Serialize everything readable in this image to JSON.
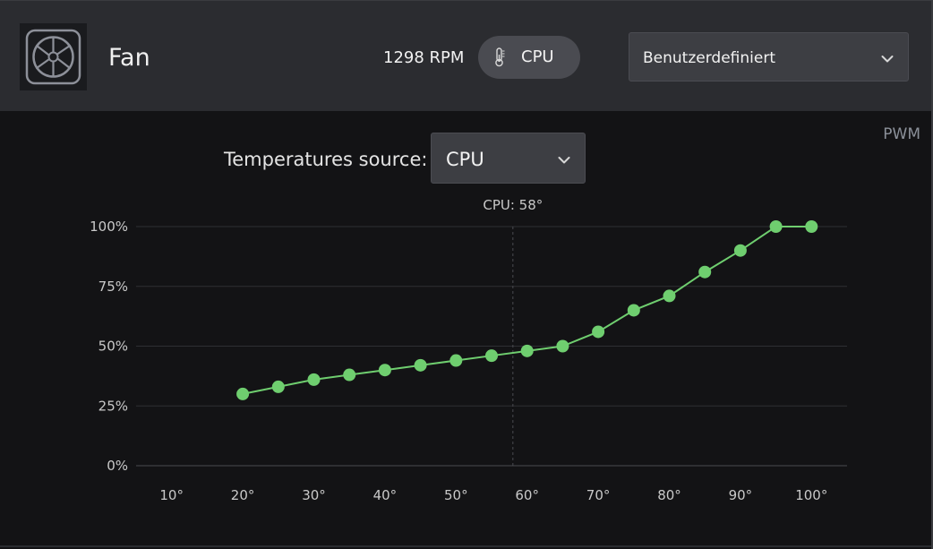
{
  "header": {
    "title": "Fan",
    "rpm": "1298 RPM",
    "sensor_pill_label": "CPU",
    "profile_select": "Benutzerdefiniert"
  },
  "controls": {
    "pwm_label": "PWM",
    "temp_source_label": "Temperatures source:",
    "temp_source_value": "CPU"
  },
  "icons": {
    "fan": "fan-icon",
    "thermometer": "thermometer-icon",
    "dropdown": "chevron-down-icon"
  },
  "colors": {
    "accent_green": "#6fce6f",
    "header_bg": "#2b2c30",
    "body_bg": "#131315"
  },
  "chart_data": {
    "type": "line",
    "marker_label": "CPU: 58°",
    "marker_x": 58,
    "x_tick_labels": [
      "10°",
      "20°",
      "30°",
      "40°",
      "50°",
      "60°",
      "70°",
      "80°",
      "90°",
      "100°"
    ],
    "x_ticks": [
      10,
      20,
      30,
      40,
      50,
      60,
      70,
      80,
      90,
      100
    ],
    "y_tick_labels": [
      "100%",
      "75%",
      "50%",
      "25%",
      "0%"
    ],
    "y_ticks": [
      100,
      75,
      50,
      25,
      0
    ],
    "xlim": [
      5,
      105
    ],
    "ylim": [
      0,
      100
    ],
    "grid": true,
    "series": [
      {
        "x": [
          20,
          25,
          30,
          35,
          40,
          45,
          50,
          55,
          60,
          65,
          70,
          75,
          80,
          85,
          90,
          95,
          100
        ],
        "y": [
          30,
          33,
          36,
          38,
          40,
          42,
          44,
          46,
          48,
          50,
          56,
          65,
          71,
          81,
          90,
          100,
          100
        ]
      }
    ]
  }
}
